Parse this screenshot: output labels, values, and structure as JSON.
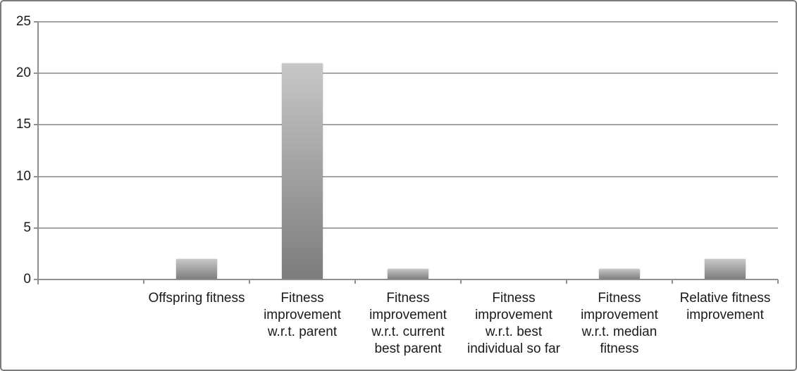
{
  "chart_data": {
    "type": "bar",
    "title": "",
    "xlabel": "",
    "ylabel": "",
    "categories": [
      "Offspring fitness",
      "Fitness improvement w.r.t. parent",
      "Fitness improvement w.r.t. current best parent",
      "Fitness improvement w.r.t. best individual so far",
      "Fitness improvement w.r.t. median fitness",
      "Relative fitness improvement"
    ],
    "category_label_lines": [
      [
        "Offspring fitness"
      ],
      [
        "Fitness",
        "improvement",
        "w.r.t. parent"
      ],
      [
        "Fitness",
        "improvement",
        "w.r.t. current",
        "best parent"
      ],
      [
        "Fitness",
        "improvement",
        "w.r.t. best",
        "individual so far"
      ],
      [
        "Fitness",
        "improvement",
        "w.r.t. median",
        "fitness"
      ],
      [
        "Relative fitness",
        "improvement"
      ]
    ],
    "values": [
      2,
      21,
      1,
      0,
      1,
      2
    ],
    "ylim": [
      0,
      25
    ],
    "y_ticks": [
      0,
      5,
      10,
      15,
      20,
      25
    ],
    "grid": "horizontal gridlines on",
    "legend": "none",
    "layout_hints": {
      "leading_empty_category_slot": true,
      "bar_fill": "vertical gradient, light gray top to dark gray bottom",
      "outer_frame": "rounded gray border around whole figure"
    },
    "colors": {
      "bar_gradient_top": "#c7c7c7",
      "bar_gradient_bottom": "#7c7c7c",
      "gridline": "#a5a5a5",
      "axis": "#8f8f8f",
      "text": "#1a1a1a",
      "frame_border": "#7b7b7b",
      "background": "#ffffff"
    }
  }
}
